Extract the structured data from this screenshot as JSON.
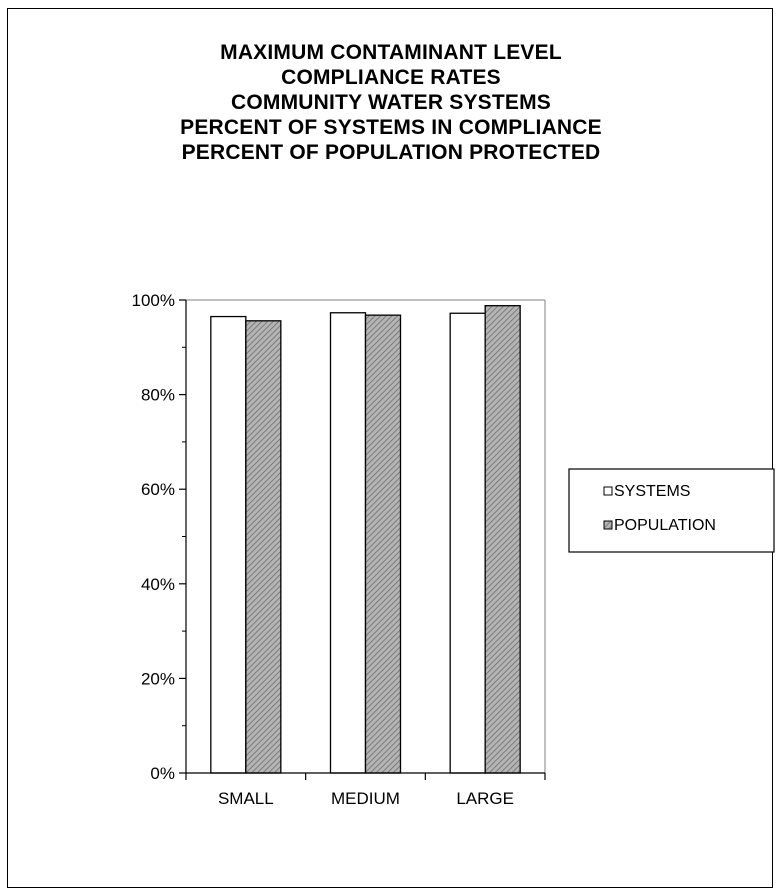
{
  "chart_data": {
    "type": "bar",
    "title_lines": [
      "MAXIMUM CONTAMINANT  LEVEL",
      "COMPLIANCE RATES",
      "COMMUNITY WATER SYSTEMS",
      "PERCENT OF SYSTEMS IN COMPLIANCE",
      "PERCENT OF POPULATION PROTECTED"
    ],
    "categories": [
      "SMALL",
      "MEDIUM",
      "LARGE"
    ],
    "series": [
      {
        "name": "SYSTEMS",
        "values": [
          96.5,
          97.3,
          97.2
        ],
        "fill": "#ffffff"
      },
      {
        "name": "POPULATION",
        "values": [
          95.6,
          96.8,
          98.8
        ],
        "fill": "#a0a0a0"
      }
    ],
    "ylim": [
      0,
      100
    ],
    "yticks": [
      0,
      20,
      40,
      60,
      80,
      100
    ],
    "ytick_labels": [
      "0%",
      "20%",
      "40%",
      "60%",
      "80%",
      "100%"
    ],
    "grid": false,
    "legend_position": "right"
  }
}
